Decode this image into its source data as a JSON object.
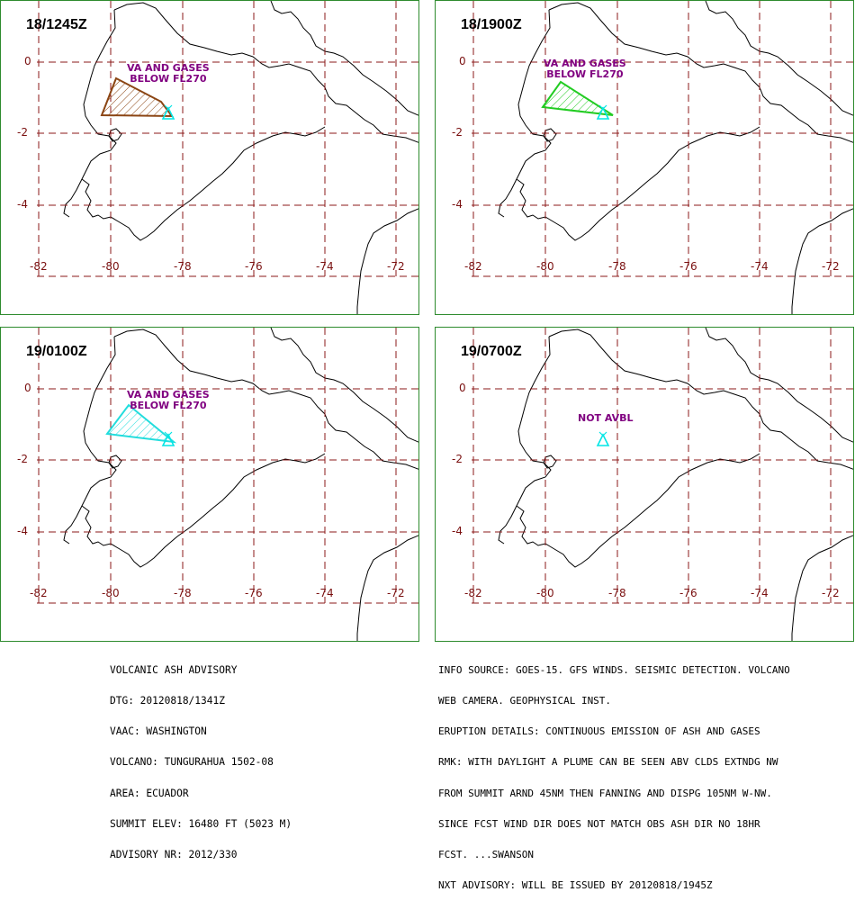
{
  "colors": {
    "grid": "#8b1a1a",
    "coast": "#000000",
    "frame": "#2e8b2e",
    "annotation": "#800080",
    "volcano": "#00e5e5"
  },
  "axes": {
    "lat_labels": [
      "0",
      "-2",
      "-4"
    ],
    "lon_labels": [
      "-82",
      "-80",
      "-78",
      "-76",
      "-74",
      "-72"
    ]
  },
  "panels": [
    {
      "title": "18/1245Z",
      "annotation": [
        "VA AND GASES",
        "BELOW FL270"
      ],
      "color": "#8b4513",
      "hatch": true
    },
    {
      "title": "18/1900Z",
      "annotation": [
        "VA AND GASES",
        "BELOW FL270"
      ],
      "color": "#22cc22",
      "hatch": true
    },
    {
      "title": "19/0100Z",
      "annotation": [
        "VA AND GASES",
        "BELOW FL270"
      ],
      "color": "#22dddd",
      "hatch": true
    },
    {
      "title": "19/0700Z",
      "annotation": [
        "NOT AVBL"
      ],
      "color": "",
      "hatch": false
    }
  ],
  "advisory_left": [
    "VOLCANIC ASH ADVISORY",
    "DTG: 20120818/1341Z",
    "VAAC: WASHINGTON",
    "VOLCANO: TUNGURAHUA 1502-08",
    "AREA: ECUADOR",
    "SUMMIT ELEV: 16480 FT (5023 M)",
    "ADVISORY NR: 2012/330"
  ],
  "advisory_right": [
    "INFO SOURCE: GOES-15. GFS WINDS. SEISMIC DETECTION. VOLCANO",
    "WEB CAMERA. GEOPHYSICAL INST.",
    "ERUPTION DETAILS: CONTINUOUS EMISSION OF ASH AND GASES",
    "RMK: WITH DAYLIGHT A PLUME CAN BE SEEN ABV CLDS EXTNDG NW",
    "FROM SUMMIT ARND 45NM THEN FANNING AND DISPG 105NM W-NW.",
    "SINCE FCST WIND DIR DOES NOT MATCH OBS ASH DIR NO 18HR",
    "FCST. ...SWANSON",
    "NXT ADVISORY: WILL BE ISSUED BY 20120818/1945Z"
  ]
}
